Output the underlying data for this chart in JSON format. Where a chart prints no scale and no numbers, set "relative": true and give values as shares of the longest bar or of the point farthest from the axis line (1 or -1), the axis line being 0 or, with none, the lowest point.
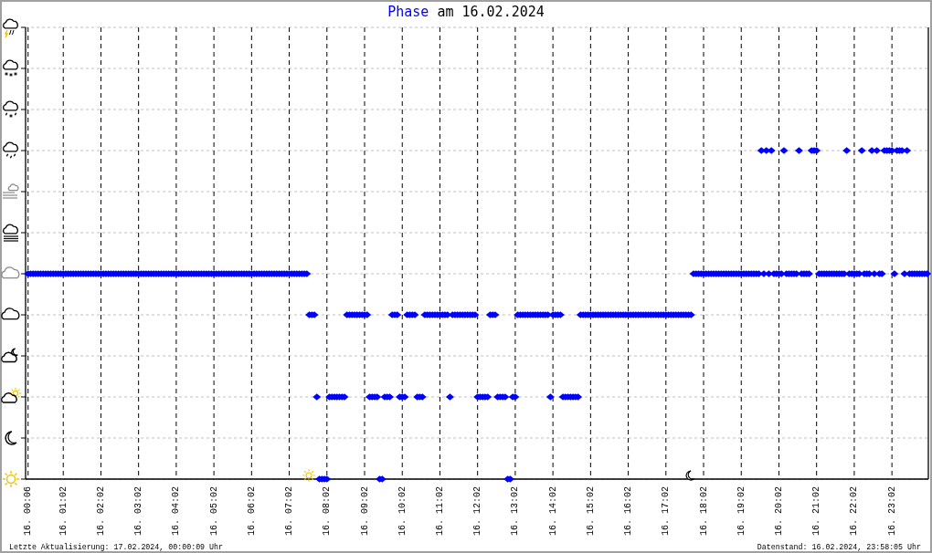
{
  "chart_data": {
    "type": "scatter",
    "title": "Phase am 16.02.2024",
    "annotations": [
      "Letzte Aktualisierung: 17.02.2024, 00:00:09 Uhr",
      "Datenstand: 16.02.2024, 23:58:05 Uhr"
    ],
    "color": "#0000ff",
    "marker": "diamond",
    "grid": true,
    "relative": true,
    "xlim": [
      "2024-02-16T00:02",
      "2024-02-17T00:00"
    ],
    "xticks": [
      {
        "value": "2024-02-16T00:06",
        "label": "16. 00:06"
      },
      {
        "value": "2024-02-16T01:02",
        "label": "16. 01:02"
      },
      {
        "value": "2024-02-16T02:02",
        "label": "16. 02:02"
      },
      {
        "value": "2024-02-16T03:02",
        "label": "16. 03:02"
      },
      {
        "value": "2024-02-16T04:02",
        "label": "16. 04:02"
      },
      {
        "value": "2024-02-16T05:02",
        "label": "16. 05:02"
      },
      {
        "value": "2024-02-16T06:02",
        "label": "16. 06:02"
      },
      {
        "value": "2024-02-16T07:02",
        "label": "16. 07:02"
      },
      {
        "value": "2024-02-16T08:02",
        "label": "16. 08:02"
      },
      {
        "value": "2024-02-16T09:02",
        "label": "16. 09:02"
      },
      {
        "value": "2024-02-16T10:02",
        "label": "16. 10:02"
      },
      {
        "value": "2024-02-16T11:02",
        "label": "16. 11:02"
      },
      {
        "value": "2024-02-16T12:02",
        "label": "16. 12:02"
      },
      {
        "value": "2024-02-16T13:02",
        "label": "16. 13:02"
      },
      {
        "value": "2024-02-16T14:02",
        "label": "16. 14:02"
      },
      {
        "value": "2024-02-16T15:02",
        "label": "16. 15:02"
      },
      {
        "value": "2024-02-16T16:02",
        "label": "16. 16:02"
      },
      {
        "value": "2024-02-16T17:02",
        "label": "16. 17:02"
      },
      {
        "value": "2024-02-16T18:02",
        "label": "16. 18:02"
      },
      {
        "value": "2024-02-16T19:02",
        "label": "16. 19:02"
      },
      {
        "value": "2024-02-16T20:02",
        "label": "16. 20:02"
      },
      {
        "value": "2024-02-16T21:02",
        "label": "16. 21:02"
      },
      {
        "value": "2024-02-16T22:02",
        "label": "16. 22:02"
      },
      {
        "value": "2024-02-16T23:02",
        "label": "16. 23:02"
      }
    ],
    "x": [
      "2024-02-16T00:06",
      "2024-02-16T00:10",
      "2024-02-16T00:14",
      "2024-02-16T00:18",
      "2024-02-16T00:22",
      "2024-02-16T00:26",
      "2024-02-16T00:30",
      "2024-02-16T00:34",
      "2024-02-16T00:38",
      "2024-02-16T00:42",
      "2024-02-16T00:46",
      "2024-02-16T00:50",
      "2024-02-16T00:54",
      "2024-02-16T00:58",
      "2024-02-16T01:02",
      "2024-02-16T01:06",
      "2024-02-16T01:10",
      "2024-02-16T01:14",
      "2024-02-16T01:18",
      "2024-02-16T01:22",
      "2024-02-16T01:26",
      "2024-02-16T01:30",
      "2024-02-16T01:34",
      "2024-02-16T01:38",
      "2024-02-16T01:42",
      "2024-02-16T01:46",
      "2024-02-16T01:50",
      "2024-02-16T01:54",
      "2024-02-16T01:58",
      "2024-02-16T02:02",
      "2024-02-16T02:06",
      "2024-02-16T02:10",
      "2024-02-16T02:14",
      "2024-02-16T02:18",
      "2024-02-16T02:22",
      "2024-02-16T02:26",
      "2024-02-16T02:30",
      "2024-02-16T02:34",
      "2024-02-16T02:38",
      "2024-02-16T02:42",
      "2024-02-16T02:46",
      "2024-02-16T02:50",
      "2024-02-16T02:54",
      "2024-02-16T02:58",
      "2024-02-16T03:02",
      "2024-02-16T03:06",
      "2024-02-16T03:10",
      "2024-02-16T03:14",
      "2024-02-16T03:18",
      "2024-02-16T03:22",
      "2024-02-16T03:26",
      "2024-02-16T03:30",
      "2024-02-16T03:34",
      "2024-02-16T03:38",
      "2024-02-16T03:42",
      "2024-02-16T03:46",
      "2024-02-16T03:50",
      "2024-02-16T03:54",
      "2024-02-16T03:58",
      "2024-02-16T04:02",
      "2024-02-16T04:06",
      "2024-02-16T04:10",
      "2024-02-16T04:14",
      "2024-02-16T04:18",
      "2024-02-16T04:22",
      "2024-02-16T04:26",
      "2024-02-16T04:30",
      "2024-02-16T04:34",
      "2024-02-16T04:38",
      "2024-02-16T04:42",
      "2024-02-16T04:46",
      "2024-02-16T04:50",
      "2024-02-16T04:54",
      "2024-02-16T04:58",
      "2024-02-16T05:02",
      "2024-02-16T05:06",
      "2024-02-16T05:10",
      "2024-02-16T05:14",
      "2024-02-16T05:18",
      "2024-02-16T05:22",
      "2024-02-16T05:26",
      "2024-02-16T05:30",
      "2024-02-16T05:34",
      "2024-02-16T05:38",
      "2024-02-16T05:42",
      "2024-02-16T05:46",
      "2024-02-16T05:50",
      "2024-02-16T05:54",
      "2024-02-16T05:58",
      "2024-02-16T06:02",
      "2024-02-16T06:06",
      "2024-02-16T06:10",
      "2024-02-16T06:14",
      "2024-02-16T06:18",
      "2024-02-16T06:22",
      "2024-02-16T06:26",
      "2024-02-16T06:30",
      "2024-02-16T06:34",
      "2024-02-16T06:38",
      "2024-02-16T06:42",
      "2024-02-16T06:46",
      "2024-02-16T06:50",
      "2024-02-16T06:54",
      "2024-02-16T06:58",
      "2024-02-16T07:02",
      "2024-02-16T07:06",
      "2024-02-16T07:10",
      "2024-02-16T07:14",
      "2024-02-16T07:18",
      "2024-02-16T07:22",
      "2024-02-16T07:26",
      "2024-02-16T07:30",
      "2024-02-16T07:34",
      "2024-02-16T07:38",
      "2024-02-16T07:42",
      "2024-02-16T07:46",
      "2024-02-16T07:50",
      "2024-02-16T07:54",
      "2024-02-16T07:58",
      "2024-02-16T08:02",
      "2024-02-16T08:06",
      "2024-02-16T08:10",
      "2024-02-16T08:14",
      "2024-02-16T08:18",
      "2024-02-16T08:22",
      "2024-02-16T08:26",
      "2024-02-16T08:30",
      "2024-02-16T08:34",
      "2024-02-16T08:38",
      "2024-02-16T08:42",
      "2024-02-16T08:46",
      "2024-02-16T08:50",
      "2024-02-16T08:54",
      "2024-02-16T08:58",
      "2024-02-16T09:02",
      "2024-02-16T09:06",
      "2024-02-16T09:10",
      "2024-02-16T09:14",
      "2024-02-16T09:18",
      "2024-02-16T09:22",
      "2024-02-16T09:26",
      "2024-02-16T09:30",
      "2024-02-16T09:34",
      "2024-02-16T09:38",
      "2024-02-16T09:42",
      "2024-02-16T09:46",
      "2024-02-16T09:50",
      "2024-02-16T09:54",
      "2024-02-16T09:58",
      "2024-02-16T10:02",
      "2024-02-16T10:06",
      "2024-02-16T10:10",
      "2024-02-16T10:14",
      "2024-02-16T10:18",
      "2024-02-16T10:22",
      "2024-02-16T10:26",
      "2024-02-16T10:30",
      "2024-02-16T10:34",
      "2024-02-16T10:38",
      "2024-02-16T10:42",
      "2024-02-16T10:46",
      "2024-02-16T10:50",
      "2024-02-16T10:54",
      "2024-02-16T10:58",
      "2024-02-16T11:02",
      "2024-02-16T11:06",
      "2024-02-16T11:10",
      "2024-02-16T11:14",
      "2024-02-16T11:18",
      "2024-02-16T11:22",
      "2024-02-16T11:26",
      "2024-02-16T11:30",
      "2024-02-16T11:34",
      "2024-02-16T11:38",
      "2024-02-16T11:42",
      "2024-02-16T11:46",
      "2024-02-16T11:50",
      "2024-02-16T11:54",
      "2024-02-16T11:58",
      "2024-02-16T12:02",
      "2024-02-16T12:06",
      "2024-02-16T12:10",
      "2024-02-16T12:14",
      "2024-02-16T12:18",
      "2024-02-16T12:22",
      "2024-02-16T12:26",
      "2024-02-16T12:30",
      "2024-02-16T12:34",
      "2024-02-16T12:38",
      "2024-02-16T12:42",
      "2024-02-16T12:46",
      "2024-02-16T12:50",
      "2024-02-16T12:54",
      "2024-02-16T12:58",
      "2024-02-16T13:02",
      "2024-02-16T13:06",
      "2024-02-16T13:10",
      "2024-02-16T13:14",
      "2024-02-16T13:18",
      "2024-02-16T13:22",
      "2024-02-16T13:26",
      "2024-02-16T13:30",
      "2024-02-16T13:34",
      "2024-02-16T13:38",
      "2024-02-16T13:42",
      "2024-02-16T13:46",
      "2024-02-16T13:50",
      "2024-02-16T13:54",
      "2024-02-16T13:58",
      "2024-02-16T14:02",
      "2024-02-16T14:06",
      "2024-02-16T14:10",
      "2024-02-16T14:14",
      "2024-02-16T14:18",
      "2024-02-16T14:22",
      "2024-02-16T14:26",
      "2024-02-16T14:30",
      "2024-02-16T14:34",
      "2024-02-16T14:38",
      "2024-02-16T14:42",
      "2024-02-16T14:46",
      "2024-02-16T14:50",
      "2024-02-16T14:54",
      "2024-02-16T14:58",
      "2024-02-16T15:02",
      "2024-02-16T15:06",
      "2024-02-16T15:10",
      "2024-02-16T15:14",
      "2024-02-16T15:18",
      "2024-02-16T15:22",
      "2024-02-16T15:26",
      "2024-02-16T15:30",
      "2024-02-16T15:34",
      "2024-02-16T15:38",
      "2024-02-16T15:42",
      "2024-02-16T15:46",
      "2024-02-16T15:50",
      "2024-02-16T15:54",
      "2024-02-16T15:58",
      "2024-02-16T16:02",
      "2024-02-16T16:06",
      "2024-02-16T16:10",
      "2024-02-16T16:14",
      "2024-02-16T16:18",
      "2024-02-16T16:22",
      "2024-02-16T16:26",
      "2024-02-16T16:30",
      "2024-02-16T16:34",
      "2024-02-16T16:38",
      "2024-02-16T16:42",
      "2024-02-16T16:46",
      "2024-02-16T16:50",
      "2024-02-16T16:54",
      "2024-02-16T16:58",
      "2024-02-16T17:02",
      "2024-02-16T17:06",
      "2024-02-16T17:10",
      "2024-02-16T17:14",
      "2024-02-16T17:18",
      "2024-02-16T17:22",
      "2024-02-16T17:26",
      "2024-02-16T17:30",
      "2024-02-16T17:34",
      "2024-02-16T17:38",
      "2024-02-16T17:42",
      "2024-02-16T17:46",
      "2024-02-16T17:50",
      "2024-02-16T17:54",
      "2024-02-16T17:58",
      "2024-02-16T18:02",
      "2024-02-16T18:06",
      "2024-02-16T18:10",
      "2024-02-16T18:14",
      "2024-02-16T18:18",
      "2024-02-16T18:22",
      "2024-02-16T18:26",
      "2024-02-16T18:30",
      "2024-02-16T18:34",
      "2024-02-16T18:38",
      "2024-02-16T18:42",
      "2024-02-16T18:46",
      "2024-02-16T18:50",
      "2024-02-16T18:54",
      "2024-02-16T18:58",
      "2024-02-16T19:02",
      "2024-02-16T19:06",
      "2024-02-16T19:10",
      "2024-02-16T19:14",
      "2024-02-16T19:18",
      "2024-02-16T19:22",
      "2024-02-16T19:26",
      "2024-02-16T19:30",
      "2024-02-16T19:34",
      "2024-02-16T19:38",
      "2024-02-16T19:42",
      "2024-02-16T19:46",
      "2024-02-16T19:50",
      "2024-02-16T19:54",
      "2024-02-16T19:58",
      "2024-02-16T20:02",
      "2024-02-16T20:06",
      "2024-02-16T20:10",
      "2024-02-16T20:14",
      "2024-02-16T20:18",
      "2024-02-16T20:22",
      "2024-02-16T20:26",
      "2024-02-16T20:30",
      "2024-02-16T20:34",
      "2024-02-16T20:38",
      "2024-02-16T20:42",
      "2024-02-16T20:46",
      "2024-02-16T20:50",
      "2024-02-16T20:54",
      "2024-02-16T20:58",
      "2024-02-16T21:02",
      "2024-02-16T21:06",
      "2024-02-16T21:10",
      "2024-02-16T21:14",
      "2024-02-16T21:18",
      "2024-02-16T21:22",
      "2024-02-16T21:26",
      "2024-02-16T21:30",
      "2024-02-16T21:34",
      "2024-02-16T21:38",
      "2024-02-16T21:42",
      "2024-02-16T21:46",
      "2024-02-16T21:50",
      "2024-02-16T21:54",
      "2024-02-16T21:58",
      "2024-02-16T22:02",
      "2024-02-16T22:06",
      "2024-02-16T22:10",
      "2024-02-16T22:14",
      "2024-02-16T22:18",
      "2024-02-16T22:22",
      "2024-02-16T22:26",
      "2024-02-16T22:30",
      "2024-02-16T22:34",
      "2024-02-16T22:38",
      "2024-02-16T22:42",
      "2024-02-16T22:46",
      "2024-02-16T22:50",
      "2024-02-16T22:54",
      "2024-02-16T22:58",
      "2024-02-16T23:02",
      "2024-02-16T23:06",
      "2024-02-16T23:10",
      "2024-02-16T23:14",
      "2024-02-16T23:18",
      "2024-02-16T23:22",
      "2024-02-16T23:26",
      "2024-02-16T23:30",
      "2024-02-16T23:34",
      "2024-02-16T23:38",
      "2024-02-16T23:42",
      "2024-02-16T23:46",
      "2024-02-16T23:50",
      "2024-02-16T23:54",
      "2024-02-16T23:58"
    ],
    "values": [
      0.625,
      0.625,
      0.625,
      0.625,
      0.625,
      0.625,
      0.625,
      0.625,
      0.625,
      0.625,
      0.625,
      0.625,
      0.625,
      0.625,
      0.625,
      0.625,
      0.625,
      0.625,
      0.625,
      0.625,
      0.625,
      0.625,
      0.625,
      0.625,
      0.625,
      0.625,
      0.625,
      0.625,
      0.625,
      0.625,
      0.625,
      0.625,
      0.625,
      0.625,
      0.625,
      0.625,
      0.625,
      0.625,
      0.625,
      0.625,
      0.625,
      0.625,
      0.625,
      0.625,
      0.625,
      0.625,
      0.625,
      0.625,
      0.625,
      0.625,
      0.625,
      0.625,
      0.625,
      0.625,
      0.625,
      0.625,
      0.625,
      0.625,
      0.625,
      0.625,
      0.625,
      0.625,
      0.625,
      0.625,
      0.625,
      0.625,
      0.625,
      0.625,
      0.625,
      0.625,
      0.625,
      0.625,
      0.625,
      0.625,
      0.625,
      0.625,
      0.625,
      0.625,
      0.625,
      0.625,
      0.625,
      0.625,
      0.625,
      0.625,
      0.625,
      0.625,
      0.625,
      0.625,
      0.625,
      0.625,
      0.625,
      0.625,
      0.625,
      0.625,
      0.625,
      0.625,
      0.625,
      0.625,
      0.625,
      0.625,
      0.625,
      0.625,
      0.625,
      0.625,
      0.625,
      0.625,
      0.625,
      0.625,
      0.625,
      0.625,
      0.625,
      0.625,
      0.5,
      0.5,
      0.5,
      0.25,
      0,
      0,
      0,
      0,
      0.25,
      0.25,
      0.25,
      0.25,
      0.25,
      0.25,
      0.25,
      0.5,
      0.5,
      0.5,
      0.5,
      0.5,
      0.5,
      0.5,
      0.5,
      0.5,
      0.25,
      0.25,
      0.25,
      0.25,
      0,
      0,
      0.25,
      0.25,
      0.25,
      0.5,
      0.5,
      0.5,
      0.25,
      0.25,
      0.25,
      0.5,
      0.5,
      0.5,
      0.5,
      0.25,
      0.25,
      0.25,
      0.5,
      0.5,
      0.5,
      0.5,
      0.5,
      0.5,
      0.5,
      0.5,
      0.5,
      0.5,
      0.25,
      0.5,
      0.5,
      0.5,
      0.5,
      0.5,
      0.5,
      0.5,
      0.5,
      0.5,
      0.5,
      0.25,
      0.25,
      0.25,
      0.25,
      0.25,
      0.5,
      0.5,
      0.5,
      0.25,
      0.25,
      0.25,
      0.25,
      0,
      0,
      0.25,
      0.25,
      0.5,
      0.5,
      0.5,
      0.5,
      0.5,
      0.5,
      0.5,
      0.5,
      0.5,
      0.5,
      0.5,
      0.5,
      0.5,
      0.25,
      0.5,
      0.5,
      0.5,
      0.5,
      0.25,
      0.25,
      0.25,
      0.25,
      0.25,
      0.25,
      0.25,
      0.5,
      0.5,
      0.5,
      0.5,
      0.5,
      0.5,
      0.5,
      0.5,
      0.5,
      0.5,
      0.5,
      0.5,
      0.5,
      0.5,
      0.5,
      0.5,
      0.5,
      0.5,
      0.5,
      0.5,
      0.5,
      0.5,
      0.5,
      0.5,
      0.5,
      0.5,
      0.5,
      0.5,
      0.5,
      0.5,
      0.5,
      0.5,
      0.5,
      0.5,
      0.5,
      0.5,
      0.5,
      0.5,
      0.5,
      0.5,
      0.5,
      0.5,
      0.5,
      0.5,
      0.5,
      0.625,
      0.625,
      0.625,
      0.625,
      0.625,
      0.625,
      0.625,
      0.625,
      0.625,
      0.625,
      0.625,
      0.625,
      0.625,
      0.625,
      0.625,
      0.625,
      0.625,
      0.625,
      0.625,
      0.625,
      0.625,
      0.625,
      0.625,
      0.625,
      0.625,
      0.625,
      0.625,
      1,
      0.625,
      1,
      0.625,
      1,
      0.625,
      0.625,
      0.625,
      0.625,
      1,
      0.625,
      0.625,
      0.625,
      0.625,
      0.625,
      1,
      0.625,
      0.625,
      0.625,
      0.625,
      1,
      1,
      1,
      0.625,
      0.625,
      0.625,
      0.625,
      0.625,
      0.625,
      0.625,
      0.625,
      0.625,
      0.625,
      0.625,
      1,
      0.625,
      0.625,
      0.625,
      0.625,
      0.625,
      1,
      0.625,
      0.625,
      0.625,
      1,
      0.625,
      1,
      0.625,
      0.625,
      1,
      1,
      1,
      1,
      0.625,
      1,
      1,
      1,
      0.625,
      1,
      0.625,
      0.625,
      0.625,
      0.625,
      0.625,
      0.625,
      0.625,
      0.625
    ]
  }
}
